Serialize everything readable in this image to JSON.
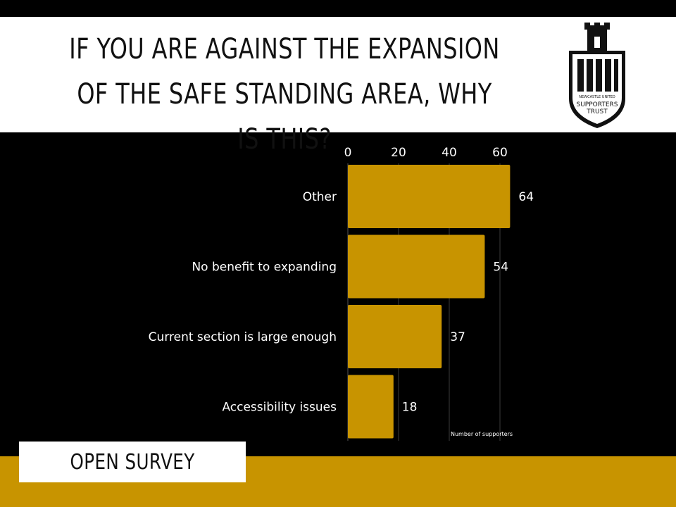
{
  "header": {
    "title": "IF YOU ARE AGAINST THE EXPANSION OF THE SAFE STANDING AREA, WHY IS THIS?",
    "logo_small_text": "NEWCASTLE UNITED",
    "logo_text_line1": "SUPPORTERS",
    "logo_text_line2": "TRUST"
  },
  "footer": {
    "badge_label": "OPEN SURVEY"
  },
  "colors": {
    "bar": "#c89400",
    "background": "#000000",
    "text": "#ffffff",
    "band": "#c89400"
  },
  "chart_data": {
    "type": "bar",
    "orientation": "horizontal",
    "categories": [
      "Other",
      "No benefit to expanding",
      "Current section is large enough",
      "Accessibility issues"
    ],
    "values": [
      64,
      54,
      37,
      18
    ],
    "xticks": [
      0,
      20,
      40,
      60
    ],
    "xlim": [
      0,
      70
    ],
    "xlabel": "Number of supporters",
    "axis_position": "top",
    "data_labels": true,
    "grid": true
  }
}
